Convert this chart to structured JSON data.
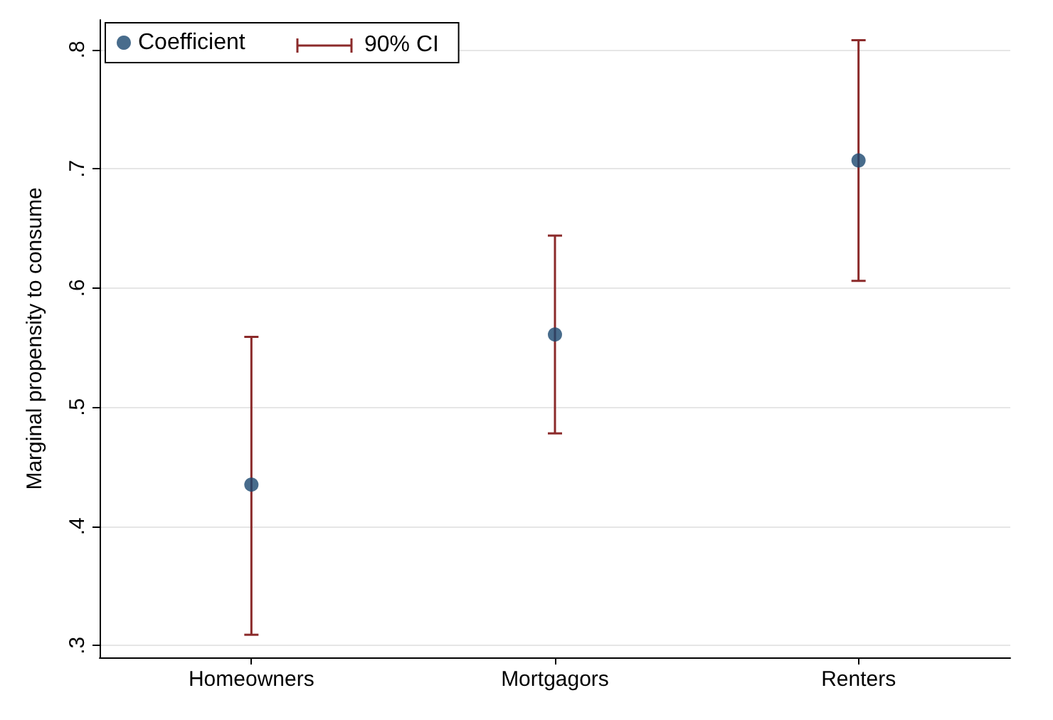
{
  "chart_data": {
    "type": "scatter",
    "ylabel": "Marginal propensity to consume",
    "categories": [
      "Homeowners",
      "Mortgagors",
      "Renters"
    ],
    "series": [
      {
        "name": "Coefficient",
        "color": "#1a476f",
        "values": [
          0.435,
          0.561,
          0.707
        ],
        "errors": [
          [
            0.309,
            0.559
          ],
          [
            0.478,
            0.644
          ],
          [
            0.606,
            0.808
          ]
        ]
      }
    ],
    "annotations": [
      "90% CI"
    ],
    "ylim": [
      0.29,
      0.825
    ],
    "yticks": [
      {
        "value": 0.3,
        "label": ".3"
      },
      {
        "value": 0.4,
        "label": ".4"
      },
      {
        "value": 0.5,
        "label": ".5"
      },
      {
        "value": 0.6,
        "label": ".6"
      },
      {
        "value": 0.7,
        "label": ".7"
      },
      {
        "value": 0.8,
        "label": ".8"
      }
    ],
    "grid": "y",
    "legend": "top left",
    "marker": "circle"
  }
}
